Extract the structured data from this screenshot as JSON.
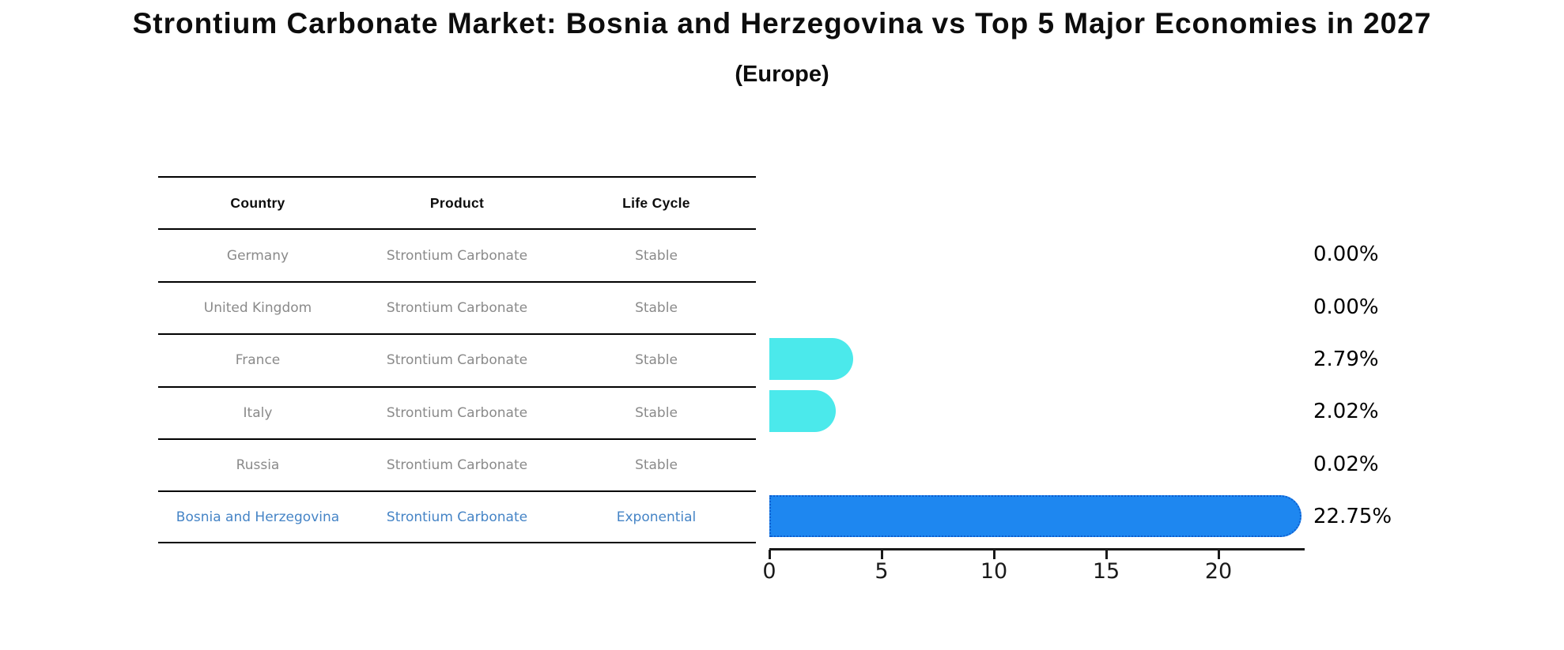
{
  "title": "Strontium Carbonate Market: Bosnia and Herzegovina vs Top 5 Major Economies in 2027",
  "subtitle": "(Europe)",
  "table": {
    "headers": [
      "Country",
      "Product",
      "Life Cycle"
    ],
    "rows": [
      {
        "country": "Germany",
        "product": "Strontium Carbonate",
        "life_cycle": "Stable",
        "highlight": false
      },
      {
        "country": "United Kingdom",
        "product": "Strontium Carbonate",
        "life_cycle": "Stable",
        "highlight": false
      },
      {
        "country": "France",
        "product": "Strontium Carbonate",
        "life_cycle": "Stable",
        "highlight": false
      },
      {
        "country": "Italy",
        "product": "Strontium Carbonate",
        "life_cycle": "Stable",
        "highlight": false
      },
      {
        "country": "Russia",
        "product": "Strontium Carbonate",
        "life_cycle": "Stable",
        "highlight": false
      },
      {
        "country": "Bosnia and Herzegovina",
        "product": "Strontium Carbonate",
        "life_cycle": "Exponential",
        "highlight": true
      }
    ]
  },
  "chart_data": {
    "type": "bar",
    "orientation": "horizontal",
    "title": "Strontium Carbonate Market: Bosnia and Herzegovina vs Top 5 Major Economies in 2027",
    "subtitle": "(Europe)",
    "categories": [
      "Germany",
      "United Kingdom",
      "France",
      "Italy",
      "Russia",
      "Bosnia and Herzegovina"
    ],
    "values": [
      0.0,
      0.0,
      2.79,
      2.02,
      0.02,
      22.75
    ],
    "value_labels": [
      "0.00%",
      "0.00%",
      "2.79%",
      "2.02%",
      "0.02%",
      "22.75%"
    ],
    "xlabel": "",
    "ylabel": "",
    "xlim": [
      0,
      23.8
    ],
    "xticks": [
      0,
      5,
      10,
      15,
      20
    ],
    "xtick_labels": [
      "0",
      "5",
      "10",
      "15",
      "20"
    ],
    "grid": false,
    "legend": "none",
    "colors": {
      "bar_normal": "#4be9eb",
      "bar_highlight": "#1e87f0",
      "bar_highlight_border": "#0f5fd0",
      "highlight_text": "#4584c6",
      "row_text": "#8a8a8a",
      "header_text": "#0d0d0d",
      "axis": "#1a1a1a"
    }
  }
}
